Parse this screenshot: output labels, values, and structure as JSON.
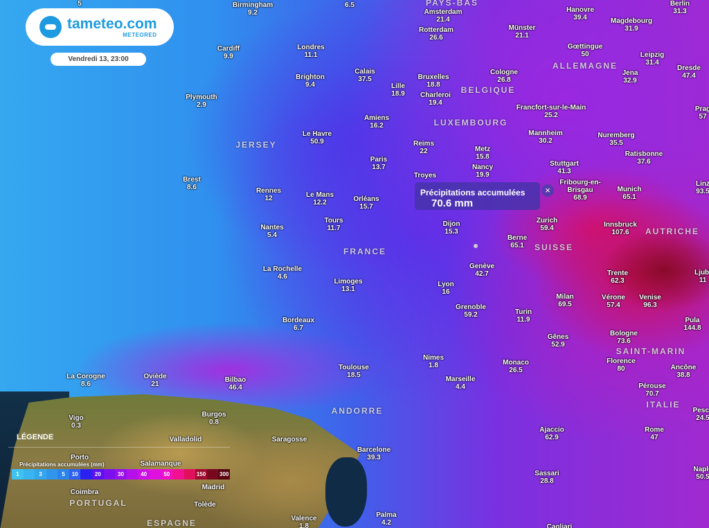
{
  "header": {
    "brand": "tameteo.com",
    "sub_brand": "METEORED",
    "date": "Vendredi 13, 23:00"
  },
  "tooltip": {
    "title": "Précipitations accumulées",
    "value": "70.6 mm",
    "close": "×"
  },
  "legend": {
    "title": "LÉGENDE",
    "subtitle": "Précipitations accumulées (mm)",
    "steps": [
      {
        "label": "1",
        "color": "#3ec2f2"
      },
      {
        "label": "",
        "color": "#38b4f0"
      },
      {
        "label": "3",
        "color": "#33a6ee"
      },
      {
        "label": "",
        "color": "#2f96ec"
      },
      {
        "label": "5",
        "color": "#2b84ea"
      },
      {
        "label": "10",
        "color": "#3060f0"
      },
      {
        "label": "",
        "color": "#2a20f0"
      },
      {
        "label": "20",
        "color": "#5a10f0"
      },
      {
        "label": "",
        "color": "#7a10ee"
      },
      {
        "label": "30",
        "color": "#9810ec"
      },
      {
        "label": "",
        "color": "#b410ea"
      },
      {
        "label": "40",
        "color": "#cc10e8"
      },
      {
        "label": "",
        "color": "#e010e0"
      },
      {
        "label": "50",
        "color": "#ee10c8"
      },
      {
        "label": "",
        "color": "#f01090"
      },
      {
        "label": "",
        "color": "#e0105a"
      },
      {
        "label": "150",
        "color": "#a00a30"
      },
      {
        "label": "",
        "color": "#78081e"
      },
      {
        "label": "300",
        "color": "#5a0612"
      }
    ]
  },
  "cities": [
    {
      "name": "",
      "value": "5"
    },
    {
      "name": "Birmingham",
      "value": "9.2"
    },
    {
      "name": "",
      "value": "6.5"
    },
    {
      "name": "Amsterdam",
      "value": "21.4"
    },
    {
      "name": "Hanovre",
      "value": "39.4"
    },
    {
      "name": "Berlin",
      "value": "31.3"
    },
    {
      "name": "Magdebourg",
      "value": "31.9"
    },
    {
      "name": "Rotterdam",
      "value": "26.6"
    },
    {
      "name": "Münster",
      "value": "21.1"
    },
    {
      "name": "Cardiff",
      "value": "9.9"
    },
    {
      "name": "Londres",
      "value": "11.1"
    },
    {
      "name": "Gœttingue",
      "value": "50"
    },
    {
      "name": "Leipzig",
      "value": "31.4"
    },
    {
      "name": "Dresde",
      "value": "47.4"
    },
    {
      "name": "Jena",
      "value": "32.9"
    },
    {
      "name": "Brighton",
      "value": "9.4"
    },
    {
      "name": "Calais",
      "value": "37.5"
    },
    {
      "name": "Lille",
      "value": "18.9"
    },
    {
      "name": "Bruxelles",
      "value": "18.8"
    },
    {
      "name": "Cologne",
      "value": "26.8"
    },
    {
      "name": "Plymouth",
      "value": "2.9"
    },
    {
      "name": "Charleroi",
      "value": "19.4"
    },
    {
      "name": "Francfort-sur-le-Main",
      "value": "25.2"
    },
    {
      "name": "Amiens",
      "value": "16.2"
    },
    {
      "name": "Le Havre",
      "value": "50.9"
    },
    {
      "name": "Mannheim",
      "value": "30.2"
    },
    {
      "name": "Nuremberg",
      "value": "35.5"
    },
    {
      "name": "Reims",
      "value": "22"
    },
    {
      "name": "Metz",
      "value": "15.8"
    },
    {
      "name": "Ratisbonne",
      "value": "37.6"
    },
    {
      "name": "Paris",
      "value": "13.7"
    },
    {
      "name": "Nancy",
      "value": "19.9"
    },
    {
      "name": "Stuttgart",
      "value": "41.3"
    },
    {
      "name": "Brest",
      "value": "8.6"
    },
    {
      "name": "Rennes",
      "value": "12"
    },
    {
      "name": "Le Mans",
      "value": "12.2"
    },
    {
      "name": "Orléans",
      "value": "15.7"
    },
    {
      "name": "Munich",
      "value": "65.1"
    },
    {
      "name": "Linz",
      "value": "93.5"
    },
    {
      "name": "Tours",
      "value": "11.7"
    },
    {
      "name": "Zurich",
      "value": "59.4"
    },
    {
      "name": "Dijon",
      "value": "15.3"
    },
    {
      "name": "Nantes",
      "value": "5.4"
    },
    {
      "name": "Innsbruck",
      "value": "107.6"
    },
    {
      "name": "Berne",
      "value": "65.1"
    },
    {
      "name": "La Rochelle",
      "value": "4.6"
    },
    {
      "name": "Genève",
      "value": "42.7"
    },
    {
      "name": "Trente",
      "value": "62.3"
    },
    {
      "name": "Ljubl",
      "value": "11"
    },
    {
      "name": "Limoges",
      "value": "13.1"
    },
    {
      "name": "Lyon",
      "value": "16"
    },
    {
      "name": "Milan",
      "value": "69.5"
    },
    {
      "name": "Vérone",
      "value": "57.4"
    },
    {
      "name": "Venise",
      "value": "96.3"
    },
    {
      "name": "Grenoble",
      "value": "59.2"
    },
    {
      "name": "Turin",
      "value": "11.9"
    },
    {
      "name": "Pula",
      "value": "144.8"
    },
    {
      "name": "Bordeaux",
      "value": "6.7"
    },
    {
      "name": "Bologne",
      "value": "73.6"
    },
    {
      "name": "Gênes",
      "value": "52.9"
    },
    {
      "name": "Nimes",
      "value": "1.8"
    },
    {
      "name": "Florence",
      "value": "80"
    },
    {
      "name": "Monaco",
      "value": "26.5"
    },
    {
      "name": "Ancône",
      "value": "38.8"
    },
    {
      "name": "Toulouse",
      "value": "18.5"
    },
    {
      "name": "La Corogne",
      "value": "8.6"
    },
    {
      "name": "Oviède",
      "value": "21"
    },
    {
      "name": "Bilbao",
      "value": "46.4"
    },
    {
      "name": "Marseille",
      "value": "4.4"
    },
    {
      "name": "Pérouse",
      "value": "70.7"
    },
    {
      "name": "Burgos",
      "value": "0.8"
    },
    {
      "name": "Vigo",
      "value": "0.3"
    },
    {
      "name": "Ajaccio",
      "value": "62.9"
    },
    {
      "name": "Rome",
      "value": "47"
    },
    {
      "name": "Pesca",
      "value": "24.5"
    },
    {
      "name": "Barcelone",
      "value": "39.3"
    },
    {
      "name": "Sassari",
      "value": "28.8"
    },
    {
      "name": "Naple",
      "value": "50.5"
    },
    {
      "name": "Palma",
      "value": "4.2"
    },
    {
      "name": "Valence",
      "value": "1.8"
    },
    {
      "name": "Troyes",
      "value": ""
    },
    {
      "name": "Fribourg-en-Brisgau",
      "value": "68.9"
    },
    {
      "name": "Prag",
      "value": "57"
    },
    {
      "name": "Cagliari",
      "value": ""
    },
    {
      "name": "Valladolid",
      "value": ""
    },
    {
      "name": "Saragosse",
      "value": ""
    },
    {
      "name": "Porto",
      "value": ""
    },
    {
      "name": "Salamanque",
      "value": ""
    },
    {
      "name": "Coimbra",
      "value": ""
    },
    {
      "name": "Madrid",
      "value": ""
    },
    {
      "name": "Tolède",
      "value": ""
    }
  ],
  "countries": [
    "PAYS-BAS",
    "ALLEMAGNE",
    "BELGIQUE",
    "LUXEMBOURG",
    "JERSEY",
    "FRANCE",
    "SUISSE",
    "AUTRICHE",
    "SAINT-MARIN",
    "ITALIE",
    "ANDORRE",
    "PORTUGAL",
    "ESPAGNE"
  ]
}
